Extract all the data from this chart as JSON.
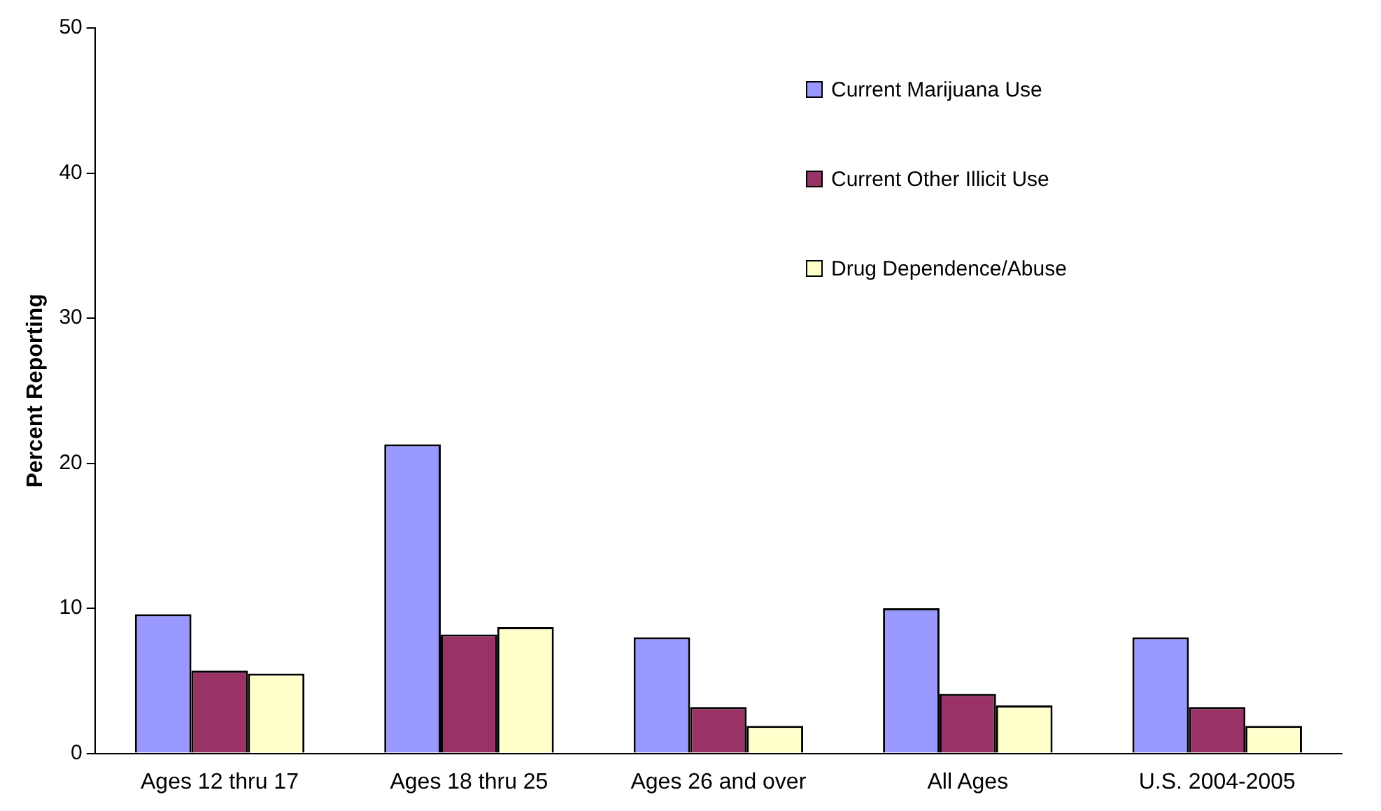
{
  "chart_data": {
    "type": "bar",
    "ylabel": "Percent Reporting",
    "categories": [
      "Ages 12 thru 17",
      "Ages 18 thru 25",
      "Ages 26 and over",
      "All Ages",
      "U.S. 2004-2005"
    ],
    "series": [
      {
        "name": "Current Marijuana Use",
        "color": "#9999ff",
        "values": [
          9.6,
          21.3,
          8.0,
          10.0,
          8.0
        ]
      },
      {
        "name": "Current Other Illicit Use",
        "color": "#993366",
        "values": [
          5.7,
          8.2,
          3.2,
          4.1,
          3.2
        ]
      },
      {
        "name": "Drug Dependence/Abuse",
        "color": "#ffffcc",
        "values": [
          5.5,
          8.7,
          1.9,
          3.3,
          1.9
        ]
      }
    ],
    "ylim": [
      0,
      50
    ],
    "yticks": [
      0,
      10,
      20,
      30,
      40,
      50
    ],
    "grid": false,
    "legend": "top right"
  }
}
